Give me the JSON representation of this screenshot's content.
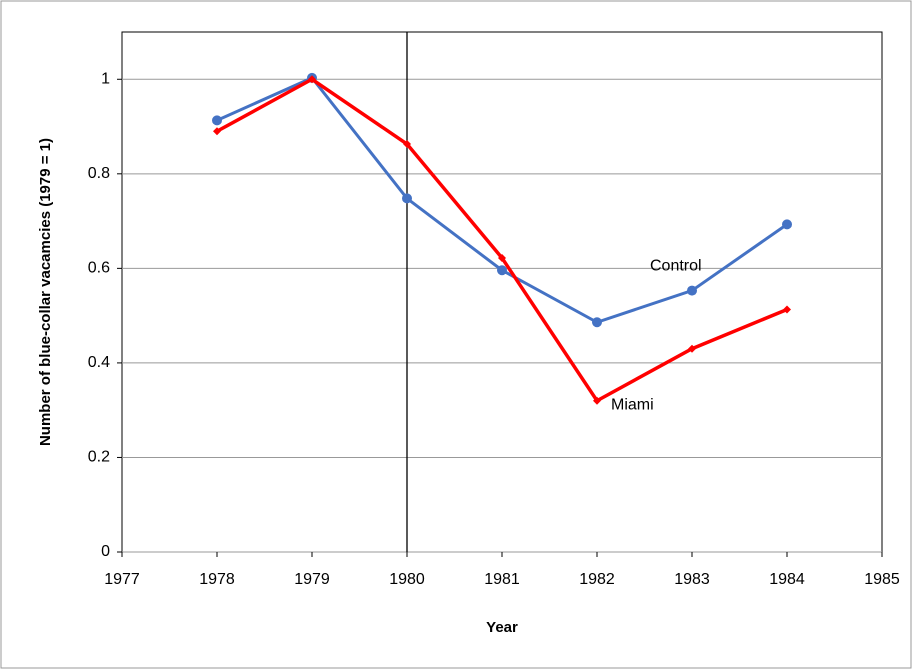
{
  "chart_data": {
    "type": "line",
    "x_label": "Year",
    "y_label": "Number of blue-collar vacamcies (1979 = 1)",
    "x": [
      1978,
      1979,
      1980,
      1981,
      1982,
      1983,
      1984
    ],
    "series": [
      {
        "name": "Control",
        "color": "#4472c4",
        "marker": "circle",
        "values": [
          0.913,
          1.003,
          0.748,
          0.596,
          0.486,
          0.553,
          0.693
        ]
      },
      {
        "name": "Miami",
        "color": "#ff0000",
        "marker": "diamond",
        "values": [
          0.89,
          1.0,
          0.863,
          0.622,
          0.32,
          0.43,
          0.513
        ]
      }
    ],
    "xlim": [
      1977,
      1985
    ],
    "xticks": [
      1977,
      1978,
      1979,
      1980,
      1981,
      1982,
      1983,
      1984,
      1985
    ],
    "ylim": [
      0,
      1.1
    ],
    "yticks": [
      0,
      0.2,
      0.4,
      0.6,
      0.8,
      1
    ],
    "grid": true,
    "vline": 1980
  }
}
